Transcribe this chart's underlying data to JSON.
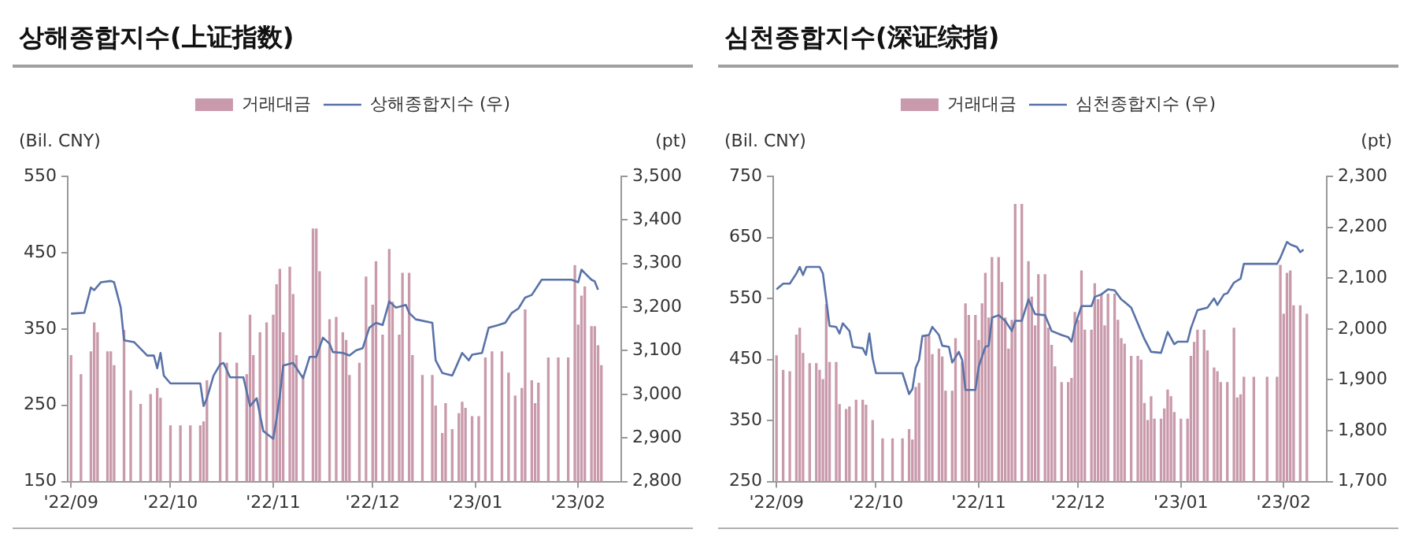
{
  "chart_data": [
    {
      "type": "bar",
      "title": "상해종합지수(上证指数)",
      "ylabel": "(Bil. CNY)",
      "y2label": "(pt)",
      "legend": "top",
      "xlim": [
        "2022-08-31",
        "2023-02-14"
      ],
      "xticks": [
        {
          "value": "2022-09-01",
          "label": "'22/09"
        },
        {
          "value": "2022-10-01",
          "label": "'22/10"
        },
        {
          "value": "2022-11-01",
          "label": "'22/11"
        },
        {
          "value": "2022-12-01",
          "label": "'22/12"
        },
        {
          "value": "2023-01-01",
          "label": "'23/01"
        },
        {
          "value": "2023-02-01",
          "label": "'23/02"
        }
      ],
      "ylim": [
        150,
        550
      ],
      "yticks": [
        150,
        250,
        350,
        450,
        550
      ],
      "y2lim": [
        2800,
        3500
      ],
      "y2ticks": [
        {
          "value": 2800,
          "label": "2,800"
        },
        {
          "value": 2900,
          "label": "2,900"
        },
        {
          "value": 3000,
          "label": "3,000"
        },
        {
          "value": 3100,
          "label": "3,100"
        },
        {
          "value": 3200,
          "label": "3,200"
        },
        {
          "value": 3300,
          "label": "3,300"
        },
        {
          "value": 3400,
          "label": "3,400"
        },
        {
          "value": 3500,
          "label": "3,500"
        }
      ],
      "series": [
        {
          "name": "거래대금",
          "color": "#c99aab",
          "x": [
            "2022-09-01",
            "2022-09-04",
            "2022-09-07",
            "2022-09-08",
            "2022-09-09",
            "2022-09-12",
            "2022-09-13",
            "2022-09-14",
            "2022-09-17",
            "2022-09-19",
            "2022-09-22",
            "2022-09-25",
            "2022-09-27",
            "2022-09-28",
            "2022-10-01",
            "2022-10-04",
            "2022-10-07",
            "2022-10-10",
            "2022-10-11",
            "2022-10-12",
            "2022-10-16",
            "2022-10-18",
            "2022-10-21",
            "2022-10-24",
            "2022-10-25",
            "2022-10-26",
            "2022-10-28",
            "2022-10-30",
            "2022-11-01",
            "2022-11-02",
            "2022-11-03",
            "2022-11-04",
            "2022-11-06",
            "2022-11-07",
            "2022-11-08",
            "2022-11-10",
            "2022-11-13",
            "2022-11-14",
            "2022-11-15",
            "2022-11-18",
            "2022-11-20",
            "2022-11-22",
            "2022-11-23",
            "2022-11-24",
            "2022-11-27",
            "2022-11-29",
            "2022-12-01",
            "2022-12-02",
            "2022-12-04",
            "2022-12-06",
            "2022-12-07",
            "2022-12-09",
            "2022-12-10",
            "2022-12-12",
            "2022-12-13",
            "2022-12-16",
            "2022-12-19",
            "2022-12-20",
            "2022-12-22",
            "2022-12-23",
            "2022-12-25",
            "2022-12-27",
            "2022-12-28",
            "2022-12-29",
            "2022-12-31",
            "2023-01-02",
            "2023-01-04",
            "2023-01-06",
            "2023-01-09",
            "2023-01-11",
            "2023-01-13",
            "2023-01-15",
            "2023-01-16",
            "2023-01-18",
            "2023-01-19",
            "2023-01-20",
            "2023-01-23",
            "2023-01-26",
            "2023-01-29",
            "2023-01-31",
            "2023-02-01",
            "2023-02-02",
            "2023-02-03",
            "2023-02-05",
            "2023-02-06",
            "2023-02-07",
            "2023-02-08"
          ],
          "values": [
            315,
            290,
            320,
            358,
            345,
            320,
            320,
            302,
            348,
            269,
            251,
            264,
            272,
            259,
            223,
            223,
            223,
            223,
            228,
            282,
            345,
            305,
            305,
            290,
            368,
            315,
            345,
            358,
            368,
            408,
            428,
            345,
            431,
            395,
            315,
            289,
            481,
            481,
            425,
            362,
            365,
            345,
            335,
            289,
            305,
            418,
            381,
            438,
            342,
            454,
            385,
            342,
            423,
            423,
            315,
            289,
            289,
            249,
            213,
            252,
            218,
            239,
            254,
            246,
            235,
            235,
            312,
            320,
            320,
            292,
            262,
            272,
            375,
            282,
            252,
            279,
            312,
            312,
            312,
            433,
            355,
            393,
            405,
            353,
            353,
            328,
            302
          ]
        },
        {
          "name": "상해종합지수 (우)",
          "type": "line",
          "axis": "y2",
          "color": "#5872a8",
          "x": [
            "2022-09-01",
            "2022-09-05",
            "2022-09-07",
            "2022-09-08",
            "2022-09-10",
            "2022-09-13",
            "2022-09-14",
            "2022-09-16",
            "2022-09-17",
            "2022-09-20",
            "2022-09-24",
            "2022-09-26",
            "2022-09-27",
            "2022-09-28",
            "2022-09-29",
            "2022-10-01",
            "2022-10-10",
            "2022-10-11",
            "2022-10-12",
            "2022-10-14",
            "2022-10-16",
            "2022-10-17",
            "2022-10-19",
            "2022-10-23",
            "2022-10-25",
            "2022-10-27",
            "2022-10-29",
            "2022-10-30",
            "2022-11-01",
            "2022-11-02",
            "2022-11-03",
            "2022-11-04",
            "2022-11-07",
            "2022-11-10",
            "2022-11-12",
            "2022-11-14",
            "2022-11-16",
            "2022-11-18",
            "2022-11-19",
            "2022-11-22",
            "2022-11-24",
            "2022-11-26",
            "2022-11-28",
            "2022-11-30",
            "2022-12-02",
            "2022-12-04",
            "2022-12-06",
            "2022-12-08",
            "2022-12-11",
            "2022-12-12",
            "2022-12-14",
            "2022-12-19",
            "2022-12-20",
            "2022-12-22",
            "2022-12-25",
            "2022-12-26",
            "2022-12-28",
            "2022-12-30",
            "2022-12-31",
            "2023-01-03",
            "2023-01-05",
            "2023-01-08",
            "2023-01-10",
            "2023-01-12",
            "2023-01-14",
            "2023-01-16",
            "2023-01-18",
            "2023-01-21",
            "2023-01-24",
            "2023-01-30",
            "2023-02-01",
            "2023-02-02",
            "2023-02-03",
            "2023-02-05",
            "2023-02-06",
            "2023-02-07"
          ],
          "values": [
            3185,
            3187,
            3245,
            3239,
            3257,
            3260,
            3257,
            3199,
            3124,
            3120,
            3089,
            3089,
            3060,
            3095,
            3043,
            3025,
            3025,
            2973,
            2991,
            3043,
            3069,
            3072,
            3039,
            3039,
            2973,
            2991,
            2916,
            2910,
            2898,
            2944,
            2997,
            3066,
            3072,
            3037,
            3086,
            3086,
            3130,
            3116,
            3097,
            3095,
            3089,
            3101,
            3106,
            3153,
            3164,
            3159,
            3213,
            3199,
            3205,
            3187,
            3172,
            3164,
            3078,
            3049,
            3043,
            3060,
            3095,
            3078,
            3091,
            3095,
            3153,
            3159,
            3164,
            3187,
            3197,
            3222,
            3228,
            3263,
            3263,
            3263,
            3257,
            3286,
            3278,
            3263,
            3259,
            3240
          ]
        }
      ]
    },
    {
      "type": "bar",
      "title": "심천종합지수(深证综指)",
      "ylabel": "(Bil. CNY)",
      "y2label": "(pt)",
      "legend": "top",
      "xlim": [
        "2022-08-31",
        "2023-02-14"
      ],
      "xticks": [
        {
          "value": "2022-09-01",
          "label": "'22/09"
        },
        {
          "value": "2022-10-01",
          "label": "'22/10"
        },
        {
          "value": "2022-11-01",
          "label": "'22/11"
        },
        {
          "value": "2022-12-01",
          "label": "'22/12"
        },
        {
          "value": "2023-01-01",
          "label": "'23/01"
        },
        {
          "value": "2023-02-01",
          "label": "'23/02"
        }
      ],
      "ylim": [
        250,
        750
      ],
      "yticks": [
        250,
        350,
        450,
        550,
        650,
        750
      ],
      "y2lim": [
        1700,
        2300
      ],
      "y2ticks": [
        {
          "value": 1700,
          "label": "1,700"
        },
        {
          "value": 1800,
          "label": "1,800"
        },
        {
          "value": 1900,
          "label": "1,900"
        },
        {
          "value": 2000,
          "label": "2,000"
        },
        {
          "value": 2100,
          "label": "2,100"
        },
        {
          "value": 2200,
          "label": "2,200"
        },
        {
          "value": 2300,
          "label": "2,300"
        }
      ],
      "series": [
        {
          "name": "거래대금",
          "color": "#c99aab",
          "x": [
            "2022-09-01",
            "2022-09-03",
            "2022-09-05",
            "2022-09-07",
            "2022-09-08",
            "2022-09-09",
            "2022-09-11",
            "2022-09-13",
            "2022-09-14",
            "2022-09-15",
            "2022-09-16",
            "2022-09-17",
            "2022-09-19",
            "2022-09-20",
            "2022-09-22",
            "2022-09-23",
            "2022-09-25",
            "2022-09-27",
            "2022-09-28",
            "2022-09-30",
            "2022-10-03",
            "2022-10-06",
            "2022-10-09",
            "2022-10-11",
            "2022-10-12",
            "2022-10-13",
            "2022-10-14",
            "2022-10-16",
            "2022-10-17",
            "2022-10-18",
            "2022-10-20",
            "2022-10-21",
            "2022-10-22",
            "2022-10-24",
            "2022-10-25",
            "2022-10-27",
            "2022-10-28",
            "2022-10-29",
            "2022-10-31",
            "2022-11-01",
            "2022-11-02",
            "2022-11-03",
            "2022-11-04",
            "2022-11-05",
            "2022-11-07",
            "2022-11-08",
            "2022-11-09",
            "2022-11-10",
            "2022-11-11",
            "2022-11-12",
            "2022-11-14",
            "2022-11-16",
            "2022-11-17",
            "2022-11-18",
            "2022-11-19",
            "2022-11-21",
            "2022-11-22",
            "2022-11-23",
            "2022-11-24",
            "2022-11-26",
            "2022-11-28",
            "2022-11-29",
            "2022-11-30",
            "2022-12-01",
            "2022-12-02",
            "2022-12-03",
            "2022-12-05",
            "2022-12-06",
            "2022-12-07",
            "2022-12-08",
            "2022-12-09",
            "2022-12-10",
            "2022-12-12",
            "2022-12-13",
            "2022-12-14",
            "2022-12-15",
            "2022-12-17",
            "2022-12-19",
            "2022-12-20",
            "2022-12-21",
            "2022-12-22",
            "2022-12-23",
            "2022-12-24",
            "2022-12-26",
            "2022-12-27",
            "2022-12-28",
            "2022-12-29",
            "2022-12-30",
            "2023-01-01",
            "2023-01-03",
            "2023-01-04",
            "2023-01-05",
            "2023-01-06",
            "2023-01-08",
            "2023-01-09",
            "2023-01-11",
            "2023-01-12",
            "2023-01-13",
            "2023-01-15",
            "2023-01-17",
            "2023-01-18",
            "2023-01-19",
            "2023-01-20",
            "2023-01-23",
            "2023-01-27",
            "2023-01-30",
            "2023-01-31",
            "2023-02-01",
            "2023-02-02",
            "2023-02-03",
            "2023-02-04",
            "2023-02-06",
            "2023-02-08"
          ],
          "values": [
            456,
            432,
            430,
            490,
            501,
            460,
            443,
            443,
            432,
            417,
            540,
            445,
            445,
            376,
            368,
            372,
            383,
            383,
            375,
            350,
            320,
            320,
            320,
            335,
            318,
            404,
            411,
            488,
            488,
            458,
            467,
            454,
            398,
            398,
            484,
            445,
            541,
            522,
            522,
            481,
            541,
            591,
            518,
            617,
            617,
            576,
            518,
            467,
            514,
            704,
            704,
            610,
            552,
            505,
            589,
            589,
            501,
            473,
            438,
            412,
            412,
            419,
            527,
            514,
            595,
            498,
            498,
            574,
            548,
            557,
            505,
            557,
            557,
            514,
            484,
            475,
            455,
            455,
            449,
            378,
            350,
            389,
            352,
            352,
            369,
            400,
            389,
            363,
            352,
            352,
            455,
            478,
            498,
            498,
            464,
            436,
            430,
            412,
            412,
            501,
            387,
            392,
            421,
            421,
            421,
            421,
            604,
            524,
            591,
            595,
            538,
            538,
            524
          ]
        },
        {
          "name": "심천종합지수 (우)",
          "type": "line",
          "axis": "y2",
          "color": "#5872a8",
          "x": [
            "2022-09-01",
            "2022-09-03",
            "2022-09-05",
            "2022-09-07",
            "2022-09-08",
            "2022-09-09",
            "2022-09-10",
            "2022-09-14",
            "2022-09-15",
            "2022-09-16",
            "2022-09-17",
            "2022-09-19",
            "2022-09-20",
            "2022-09-21",
            "2022-09-23",
            "2022-09-24",
            "2022-09-27",
            "2022-09-28",
            "2022-09-29",
            "2022-09-30",
            "2022-10-01",
            "2022-10-09",
            "2022-10-11",
            "2022-10-12",
            "2022-10-13",
            "2022-10-14",
            "2022-10-15",
            "2022-10-17",
            "2022-10-18",
            "2022-10-20",
            "2022-10-21",
            "2022-10-23",
            "2022-10-24",
            "2022-10-26",
            "2022-10-27",
            "2022-10-28",
            "2022-10-31",
            "2022-11-01",
            "2022-11-03",
            "2022-11-04",
            "2022-11-05",
            "2022-11-07",
            "2022-11-09",
            "2022-11-11",
            "2022-11-12",
            "2022-11-14",
            "2022-11-16",
            "2022-11-18",
            "2022-11-21",
            "2022-11-23",
            "2022-11-26",
            "2022-11-28",
            "2022-11-29",
            "2022-11-30",
            "2022-12-02",
            "2022-12-05",
            "2022-12-06",
            "2022-12-08",
            "2022-12-10",
            "2022-12-12",
            "2022-12-14",
            "2022-12-15",
            "2022-12-17",
            "2022-12-19",
            "2022-12-21",
            "2022-12-23",
            "2022-12-26",
            "2022-12-28",
            "2022-12-30",
            "2022-12-31",
            "2023-01-03",
            "2023-01-04",
            "2023-01-06",
            "2023-01-09",
            "2023-01-11",
            "2023-01-12",
            "2023-01-14",
            "2023-01-15",
            "2023-01-17",
            "2023-01-19",
            "2023-01-20",
            "2023-01-25",
            "2023-01-30",
            "2023-01-31",
            "2023-02-02",
            "2023-02-03",
            "2023-02-05",
            "2023-02-06",
            "2023-02-07"
          ],
          "values": [
            2078,
            2089,
            2089,
            2109,
            2122,
            2106,
            2122,
            2122,
            2109,
            2058,
            2006,
            2004,
            1991,
            2011,
            1996,
            1965,
            1962,
            1949,
            1991,
            1942,
            1913,
            1913,
            1872,
            1882,
            1924,
            1939,
            1986,
            1988,
            2004,
            1988,
            1967,
            1965,
            1934,
            1955,
            1939,
            1880,
            1880,
            1926,
            1965,
            1967,
            2022,
            2027,
            2016,
            1996,
            2016,
            2016,
            2058,
            2029,
            2027,
            1996,
            1988,
            1984,
            1975,
            2006,
            2045,
            2045,
            2063,
            2068,
            2078,
            2076,
            2058,
            2053,
            2042,
            2011,
            1980,
            1955,
            1953,
            1994,
            1970,
            1975,
            1975,
            2001,
            2037,
            2042,
            2060,
            2047,
            2068,
            2070,
            2091,
            2099,
            2128,
            2128,
            2128,
            2140,
            2171,
            2166,
            2161,
            2151,
            2156
          ]
        }
      ]
    }
  ]
}
